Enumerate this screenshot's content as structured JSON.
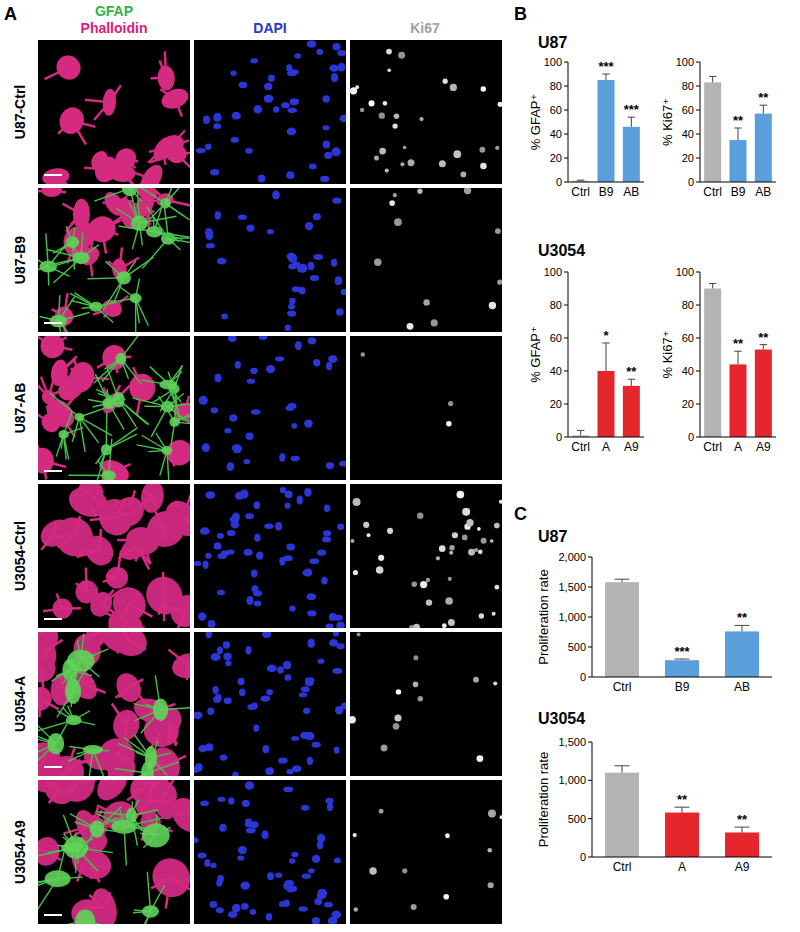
{
  "panel_labels": [
    "A",
    "B",
    "C"
  ],
  "panel_a": {
    "stain_headers": [
      {
        "text": "GFAP",
        "color": "#2fb34a"
      },
      {
        "text": "Phalloidin",
        "color": "#e0197d"
      },
      {
        "text": "DAPI",
        "color": "#2b36cf"
      },
      {
        "text": "Ki67",
        "color": "#a0a0a0"
      }
    ],
    "rows": [
      "U87-Ctrl",
      "U87-B9",
      "U87-AB",
      "U3054-Ctrl",
      "U3054-A",
      "U3054-A9"
    ]
  },
  "chart_data": [
    {
      "type": "bar",
      "title": "U87",
      "ylabel": "% GFAP⁺",
      "categories": [
        "Ctrl",
        "B9",
        "AB"
      ],
      "values": [
        1,
        85,
        46
      ],
      "errors": [
        0.5,
        5,
        8
      ],
      "significance": [
        null,
        "***",
        "***"
      ],
      "colors": [
        "#b3b3b3",
        "#5a9fdc",
        "#5a9fdc"
      ],
      "ylim": [
        0,
        100
      ],
      "yticks": [
        0,
        20,
        40,
        60,
        80,
        100
      ]
    },
    {
      "type": "bar",
      "ylabel": "% Ki67⁺",
      "categories": [
        "Ctrl",
        "B9",
        "AB"
      ],
      "values": [
        83,
        35,
        57
      ],
      "errors": [
        5,
        10,
        7
      ],
      "significance": [
        null,
        "**",
        "**"
      ],
      "colors": [
        "#b3b3b3",
        "#5a9fdc",
        "#5a9fdc"
      ],
      "ylim": [
        0,
        100
      ],
      "yticks": [
        0,
        20,
        40,
        60,
        80,
        100
      ]
    },
    {
      "type": "bar",
      "title": "U3054",
      "ylabel": "% GFAP⁺",
      "categories": [
        "Ctrl",
        "A",
        "A9"
      ],
      "values": [
        1,
        40,
        31
      ],
      "errors": [
        3,
        17,
        4
      ],
      "significance": [
        null,
        "*",
        "**"
      ],
      "colors": [
        "#b3b3b3",
        "#e5262c",
        "#e5262c"
      ],
      "ylim": [
        0,
        100
      ],
      "yticks": [
        0,
        20,
        40,
        60,
        80,
        100
      ]
    },
    {
      "type": "bar",
      "ylabel": "% Ki67⁺",
      "categories": [
        "Ctrl",
        "A",
        "A9"
      ],
      "values": [
        90,
        44,
        53
      ],
      "errors": [
        3,
        8,
        3
      ],
      "significance": [
        null,
        "**",
        "**"
      ],
      "colors": [
        "#b3b3b3",
        "#e5262c",
        "#e5262c"
      ],
      "ylim": [
        0,
        100
      ],
      "yticks": [
        0,
        20,
        40,
        60,
        80,
        100
      ]
    },
    {
      "type": "bar",
      "title": "U87",
      "ylabel": "Proliferation rate",
      "categories": [
        "Ctrl",
        "B9",
        "AB"
      ],
      "values": [
        1580,
        280,
        760
      ],
      "errors": [
        50,
        20,
        100
      ],
      "significance": [
        null,
        "***",
        "**"
      ],
      "colors": [
        "#b3b3b3",
        "#5a9fdc",
        "#5a9fdc"
      ],
      "ylim": [
        0,
        2000
      ],
      "yticks": [
        0,
        500,
        {
          "value": 1000,
          "label": "1,000"
        },
        {
          "value": 1500,
          "label": "1,500"
        },
        {
          "value": 2000,
          "label": "2,000"
        }
      ]
    },
    {
      "type": "bar",
      "title": "U3054",
      "ylabel": "Proliferation rate",
      "categories": [
        "Ctrl",
        "A",
        "A9"
      ],
      "values": [
        1100,
        580,
        320
      ],
      "errors": [
        90,
        70,
        70
      ],
      "significance": [
        null,
        "**",
        "**"
      ],
      "colors": [
        "#b3b3b3",
        "#e5262c",
        "#e5262c"
      ],
      "ylim": [
        0,
        1500
      ],
      "yticks": [
        0,
        500,
        {
          "value": 1000,
          "label": "1,000"
        },
        {
          "value": 1500,
          "label": "1,500"
        }
      ]
    }
  ]
}
